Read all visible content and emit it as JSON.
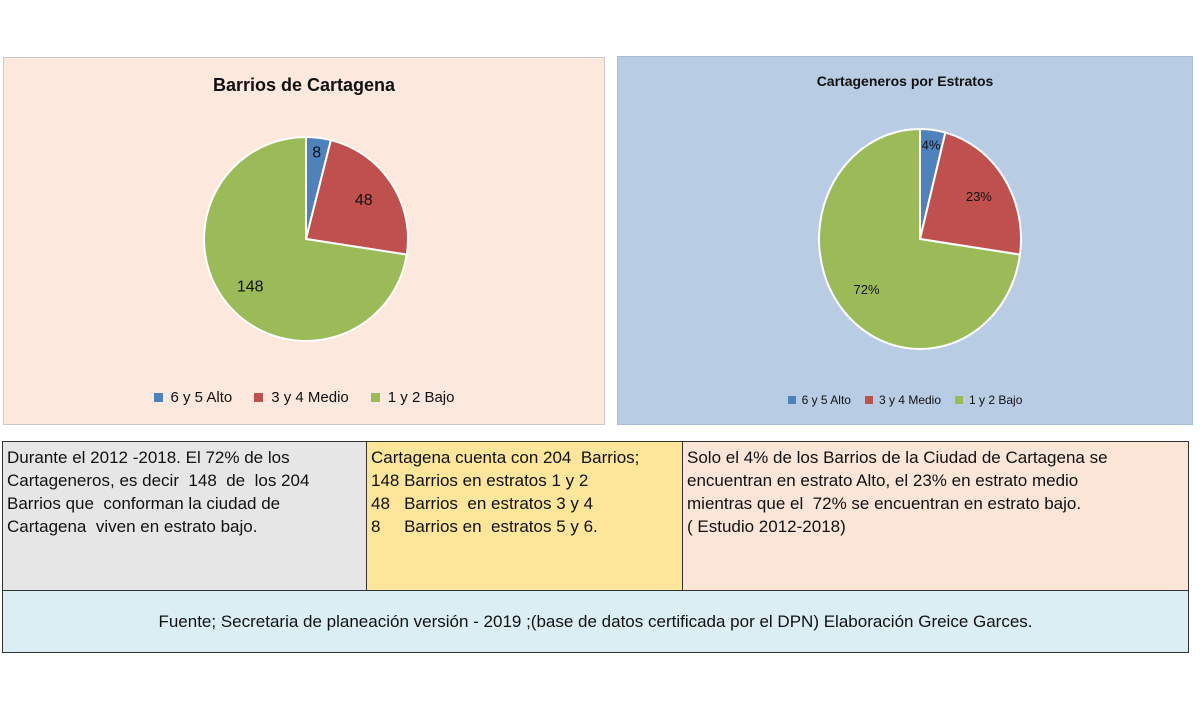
{
  "chart_data": [
    {
      "type": "pie",
      "title": "Barrios de Cartagena",
      "categories": [
        "6 y 5  Alto",
        "3 y 4 Medio",
        "1 y 2 Bajo"
      ],
      "values": [
        8,
        48,
        148
      ],
      "data_labels": [
        "8",
        "48",
        "148"
      ],
      "colors": [
        "#4f81bd",
        "#c0504d",
        "#9bbb59"
      ],
      "legend": "bottom"
    },
    {
      "type": "pie",
      "title": "Cartageneros por Estratos",
      "categories": [
        "6 y 5  Alto",
        "3 y 4 Medio",
        "1 y 2 Bajo"
      ],
      "values": [
        4,
        23,
        72
      ],
      "data_labels": [
        "4%",
        "23%",
        "72%"
      ],
      "colors": [
        "#4f81bd",
        "#c0504d",
        "#9bbb59"
      ],
      "legend": "bottom"
    }
  ],
  "info": {
    "left": [
      "Durante el 2012 -2018. El 72% de los",
      "Cartageneros, es decir  148  de  los 204",
      "Barrios que  conforman la ciudad de",
      "Cartagena  viven en estrato bajo."
    ],
    "middle": [
      "Cartagena cuenta con 204  Barrios;",
      "148 Barrios en estratos 1 y 2",
      "48   Barrios  en estratos 3 y 4",
      "8     Barrios en  estratos 5 y 6."
    ],
    "right": [
      "Solo el 4% de los Barrios de la Ciudad de Cartagena se",
      "encuentran en estrato Alto, el 23% en estrato medio",
      "mientras que el  72% se encuentran en estrato bajo.",
      "( Estudio 2012-2018)"
    ],
    "source": "Fuente; Secretaria de planeación   versión - 2019 ;(base de datos certificada por el DPN) Elaboración Greice Garces."
  }
}
